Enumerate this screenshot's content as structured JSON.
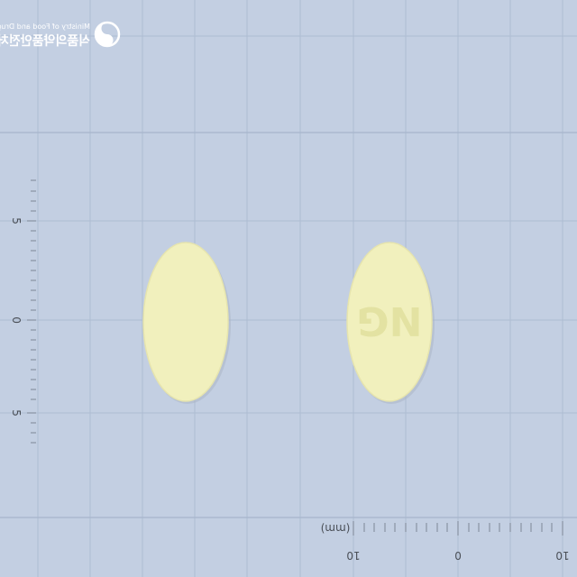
{
  "logo": {
    "agency_ko": "식품의약품안전처",
    "agency_en": "Ministry of Food and Drug Safety"
  },
  "pills": {
    "left": {
      "imprint": "",
      "color": "#f1f0bd"
    },
    "right": {
      "imprint": "NG",
      "color": "#f1f0bd"
    }
  },
  "vertical_ruler": {
    "labels": [
      "5",
      "0",
      "5"
    ]
  },
  "horizontal_ruler": {
    "unit": "(mm)",
    "labels": [
      "10",
      "0",
      "10"
    ]
  },
  "colors": {
    "background": "#c3cfe2",
    "pill": "#f1f0bd",
    "pill_imprint": "#e3e2a2",
    "logo": "#ffffff"
  }
}
